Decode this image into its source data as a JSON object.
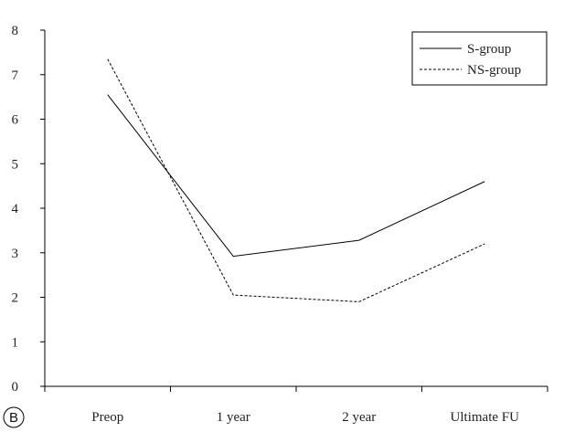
{
  "panel_label": "B",
  "chart_data": {
    "type": "line",
    "title": "",
    "xlabel": "",
    "ylabel": "",
    "categories": [
      "Preop",
      "1 year",
      "2 year",
      "Ultimate FU"
    ],
    "ylim": [
      0,
      8
    ],
    "yticks": [
      0,
      1,
      2,
      3,
      4,
      5,
      6,
      7,
      8
    ],
    "grid": false,
    "legend_position": "top-right",
    "series": [
      {
        "name": "S-group",
        "values": [
          6.55,
          2.92,
          3.28,
          4.6
        ],
        "style": "solid",
        "color": "#000000"
      },
      {
        "name": "NS-group",
        "values": [
          7.35,
          2.05,
          1.9,
          3.2
        ],
        "style": "dashed",
        "color": "#000000"
      }
    ]
  }
}
